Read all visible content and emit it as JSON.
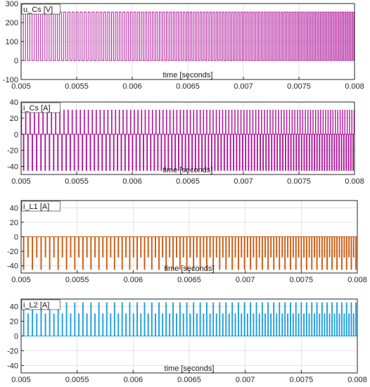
{
  "chart_data": [
    {
      "type": "line",
      "signal": "square",
      "title": "u_Cs [V]",
      "xlabel": "time [seconds]",
      "ylabel": "",
      "xlim": [
        0.005,
        0.008
      ],
      "ylim": [
        -100,
        300
      ],
      "xticks": [
        "0.005",
        "0.0055",
        "0.006",
        "0.0065",
        "0.007",
        "0.0075",
        "0.008"
      ],
      "yticks": [
        "-100",
        "0",
        "100",
        "200",
        "300"
      ],
      "grid": true,
      "color": "#b0179b",
      "series": [
        {
          "x_start": 0.005,
          "x_end": 0.008,
          "y_low": 0,
          "y_high": 255,
          "period_start": 3.95e-05,
          "period_end": 2.05e-05
        }
      ]
    },
    {
      "type": "line",
      "signal": "square-spike",
      "title": "i_Cs [A]",
      "xlabel": "time [seconds]",
      "ylabel": "",
      "xlim": [
        0.005,
        0.008
      ],
      "ylim": [
        -50,
        40
      ],
      "xticks": [
        "0.005",
        "0.0055",
        "0.006",
        "0.0065",
        "0.007",
        "0.0075",
        "0.008"
      ],
      "yticks": [
        "-40",
        "-20",
        "0",
        "20",
        "40"
      ],
      "grid": true,
      "color": "#b0179b",
      "series": [
        {
          "x_start": 0.005,
          "x_end": 0.008,
          "y_low": -45,
          "y_high": 30,
          "y_base": 0,
          "period_start": 3.95e-05,
          "period_end": 2.05e-05
        }
      ]
    },
    {
      "type": "line",
      "signal": "neg-spike",
      "title": "i_L1 [A]",
      "xlabel": "time [seconds]",
      "ylabel": "",
      "xlim": [
        0.005,
        0.008
      ],
      "ylim": [
        -50,
        40
      ],
      "xticks": [
        "0.005",
        "0.0055",
        "0.006",
        "0.0065",
        "0.007",
        "0.0075",
        "0.008"
      ],
      "yticks": [
        "-40",
        "-20",
        "0",
        "20",
        "40"
      ],
      "grid": true,
      "color": "#cc5a10",
      "series": [
        {
          "x_start": 0.005,
          "x_end": 0.008,
          "y_base": 0,
          "y_short": -28,
          "y_long": -45,
          "period_start": 3.95e-05,
          "period_end": 2.05e-05
        }
      ]
    },
    {
      "type": "line",
      "signal": "pos-spike",
      "title": "i_L2 [A]",
      "xlabel": "time [seconds]",
      "ylabel": "",
      "xlim": [
        0.005,
        0.008
      ],
      "ylim": [
        -50,
        50
      ],
      "xticks": [
        "0.005",
        "0.0055",
        "0.006",
        "0.0065",
        "0.007",
        "0.0075",
        "0.008"
      ],
      "yticks": [
        "-40",
        "-20",
        "0",
        "20",
        "40"
      ],
      "grid": true,
      "color": "#1e9fe0",
      "series": [
        {
          "x_start": 0.005,
          "x_end": 0.008,
          "y_base": 0,
          "y_short": 30,
          "y_long": 45,
          "period_start": 3.95e-05,
          "period_end": 2.05e-05
        }
      ]
    }
  ]
}
